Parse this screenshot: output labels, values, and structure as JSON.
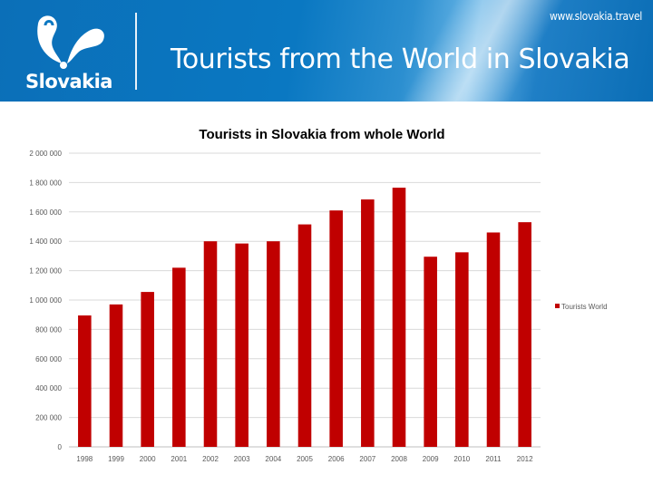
{
  "header": {
    "brand_name": "Slovakia",
    "website": "www.slovakia.travel",
    "title": "Tourists from the World in Slovakia"
  },
  "colors": {
    "header_blue": "#0a78c2",
    "bar_red": "#c00000",
    "grid": "#d9d9d9"
  },
  "chart_data": {
    "type": "bar",
    "title": "Tourists in Slovakia from whole World",
    "categories": [
      "1998",
      "1999",
      "2000",
      "2001",
      "2002",
      "2003",
      "2004",
      "2005",
      "2006",
      "2007",
      "2008",
      "2009",
      "2010",
      "2011",
      "2012"
    ],
    "series": [
      {
        "name": "Tourists World",
        "values": [
          895000,
          970000,
          1055000,
          1220000,
          1400000,
          1385000,
          1400000,
          1515000,
          1610000,
          1685000,
          1765000,
          1295000,
          1325000,
          1460000,
          1530000
        ]
      }
    ],
    "yticks": [
      "0",
      "200 000",
      "400 000",
      "600 000",
      "800 000",
      "1 000 000",
      "1 200 000",
      "1 400 000",
      "1 600 000",
      "1 800 000",
      "2 000 000"
    ],
    "ylim": [
      0,
      2000000
    ],
    "ytick_step": 200000,
    "grid": true,
    "legend_position": "right"
  }
}
